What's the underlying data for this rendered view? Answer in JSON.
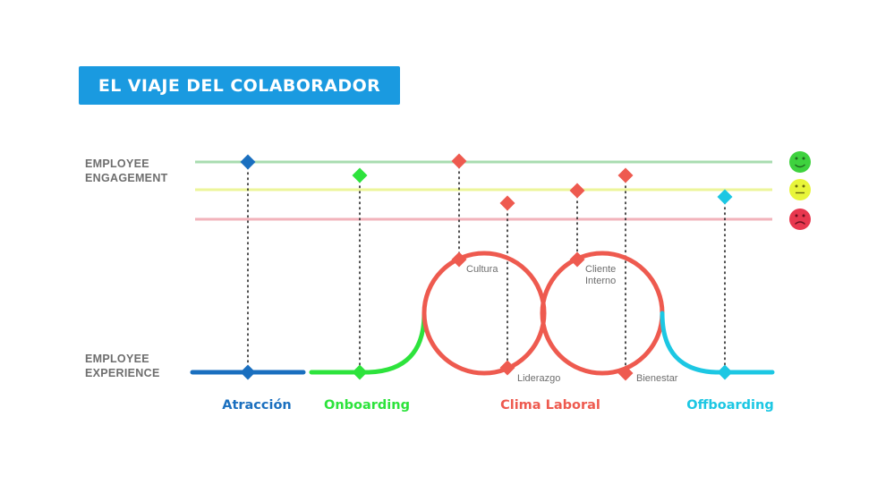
{
  "title": "EL VIAJE DEL COLABORADOR",
  "labels": {
    "engagement_line1": "EMPLOYEE",
    "engagement_line2": "ENGAGEMENT",
    "experience_line1": "EMPLOYEE",
    "experience_line2": "EXPERIENCE"
  },
  "stages": {
    "atraccion": "Atracción",
    "onboarding": "Onboarding",
    "clima": "Clima Laboral",
    "offboarding": "Offboarding"
  },
  "touchpoints": {
    "cultura": "Cultura",
    "liderazgo": "Liderazgo",
    "cliente_line1": "Cliente",
    "cliente_line2": "Interno",
    "bienestar": "Bienestar"
  },
  "colors": {
    "title_bg": "#1a9ae0",
    "atraccion": "#1a6fbf",
    "onboarding": "#2de33c",
    "clima": "#ee5a4f",
    "offboarding": "#1cc7e3",
    "line_high": "#a8dcb0",
    "line_mid": "#ecf59a",
    "line_low": "#f2b3bb",
    "face_happy": "#3ed23e",
    "face_neutral": "#e8f53a",
    "face_sad": "#e8384f",
    "label_gray": "#6e6e6e"
  },
  "icons": [
    "happy-face-icon",
    "neutral-face-icon",
    "sad-face-icon"
  ]
}
